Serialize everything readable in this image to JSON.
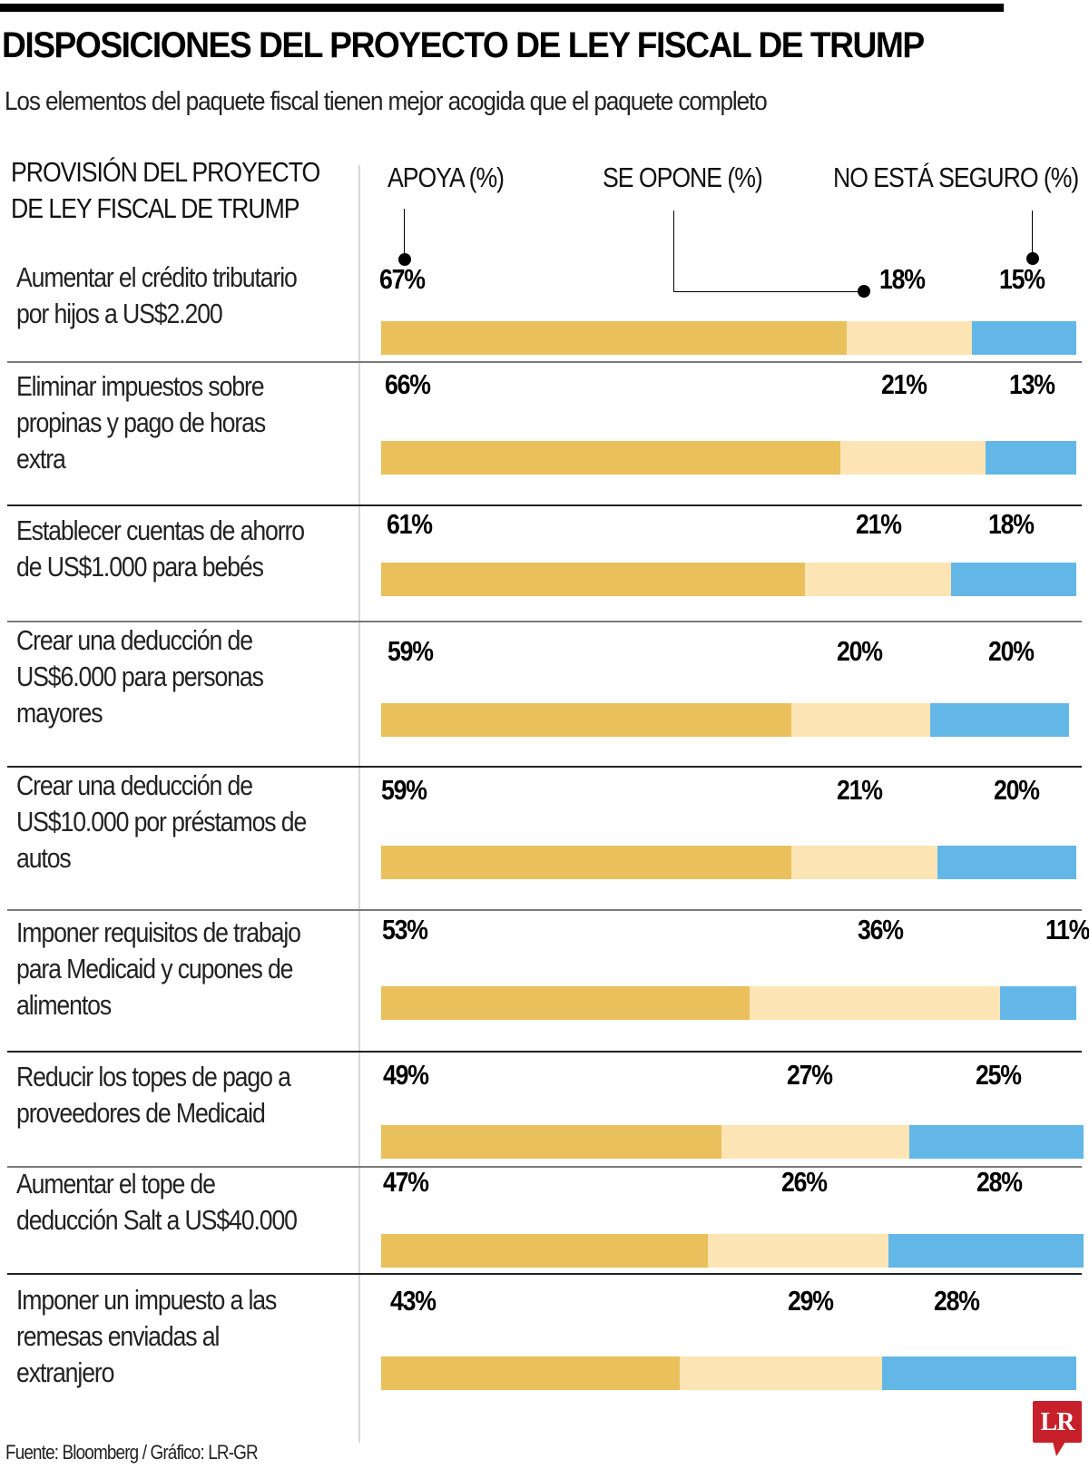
{
  "header": {
    "title": "DISPOSICIONES DEL PROYECTO DE LEY FISCAL DE TRUMP",
    "subtitle": "Los elementos del paquete fiscal tienen mejor acogida que el paquete completo"
  },
  "columns": {
    "provision": [
      "PROVISIÓN DEL PROYECTO",
      "DE LEY FISCAL DE TRUMP"
    ],
    "support": "APOYA (%)",
    "oppose": "SE OPONE (%)",
    "unsure": "NO ESTÁ SEGURO (%)"
  },
  "colors": {
    "support": "#e9c05c",
    "oppose": "#fde4b4",
    "unsure": "#63b7e6",
    "brand": "#c8202a"
  },
  "chart_data": {
    "type": "bar",
    "orientation": "horizontal-stacked",
    "title": "DISPOSICIONES DEL PROYECTO DE LEY FISCAL DE TRUMP",
    "subtitle": "Los elementos del paquete fiscal tienen mejor acogida que el paquete completo",
    "xlabel": "",
    "ylabel": "PROVISIÓN DEL PROYECTO DE LEY FISCAL DE TRUMP",
    "xlim": [
      0,
      100
    ],
    "grid": false,
    "legend": "top",
    "categories": [
      "Aumentar el crédito tributario por hijos a US$2.200",
      "Eliminar impuestos sobre propinas y pago de horas extra",
      "Establecer cuentas de ahorro de US$1.000 para bebés",
      "Crear una deducción de US$6.000 para personas mayores",
      "Crear una deducción de US$10.000 por préstamos de autos",
      "Imponer requisitos de trabajo para Medicaid y cupones de alimentos",
      "Reducir los topes de pago a proveedores de Medicaid",
      "Aumentar el tope de deducción Salt a US$40.000",
      "Imponer un impuesto a las remesas enviadas al extranjero"
    ],
    "category_lines": [
      [
        "Aumentar el crédito tributario",
        "por hijos a US$2.200"
      ],
      [
        "Eliminar impuestos sobre",
        "propinas y pago de horas",
        "extra"
      ],
      [
        "Establecer cuentas de ahorro",
        "de US$1.000 para bebés"
      ],
      [
        "Crear una deducción de",
        "US$6.000 para personas",
        "mayores"
      ],
      [
        "Crear una deducción de",
        "US$10.000 por préstamos de",
        "autos"
      ],
      [
        "Imponer requisitos de trabajo",
        "para Medicaid y cupones de",
        "alimentos"
      ],
      [
        "Reducir los topes de pago a",
        "proveedores de Medicaid"
      ],
      [
        "Aumentar el tope de",
        "deducción Salt a US$40.000"
      ],
      [
        "Imponer un impuesto a las",
        "remesas enviadas al",
        "extranjero"
      ]
    ],
    "series": [
      {
        "name": "APOYA (%)",
        "values": [
          67,
          66,
          61,
          59,
          59,
          53,
          49,
          47,
          43
        ]
      },
      {
        "name": "SE OPONE (%)",
        "values": [
          18,
          21,
          21,
          20,
          21,
          36,
          27,
          26,
          29
        ]
      },
      {
        "name": "NO ESTÁ SEGURO (%)",
        "values": [
          15,
          13,
          18,
          20,
          20,
          11,
          25,
          28,
          28
        ]
      }
    ],
    "value_labels": [
      [
        "67%",
        "18%",
        "15%"
      ],
      [
        "66%",
        "21%",
        "13%"
      ],
      [
        "61%",
        "21%",
        "18%"
      ],
      [
        "59%",
        "20%",
        "20%"
      ],
      [
        "59%",
        "21%",
        "20%"
      ],
      [
        "53%",
        "36%",
        "11%"
      ],
      [
        "49%",
        "27%",
        "25%"
      ],
      [
        "47%",
        "26%",
        "28%"
      ],
      [
        "43%",
        "29%",
        "28%"
      ]
    ]
  },
  "footer": {
    "source": "Fuente: Bloomberg / Gráfico: LR-GR",
    "logo_text": "LR"
  }
}
